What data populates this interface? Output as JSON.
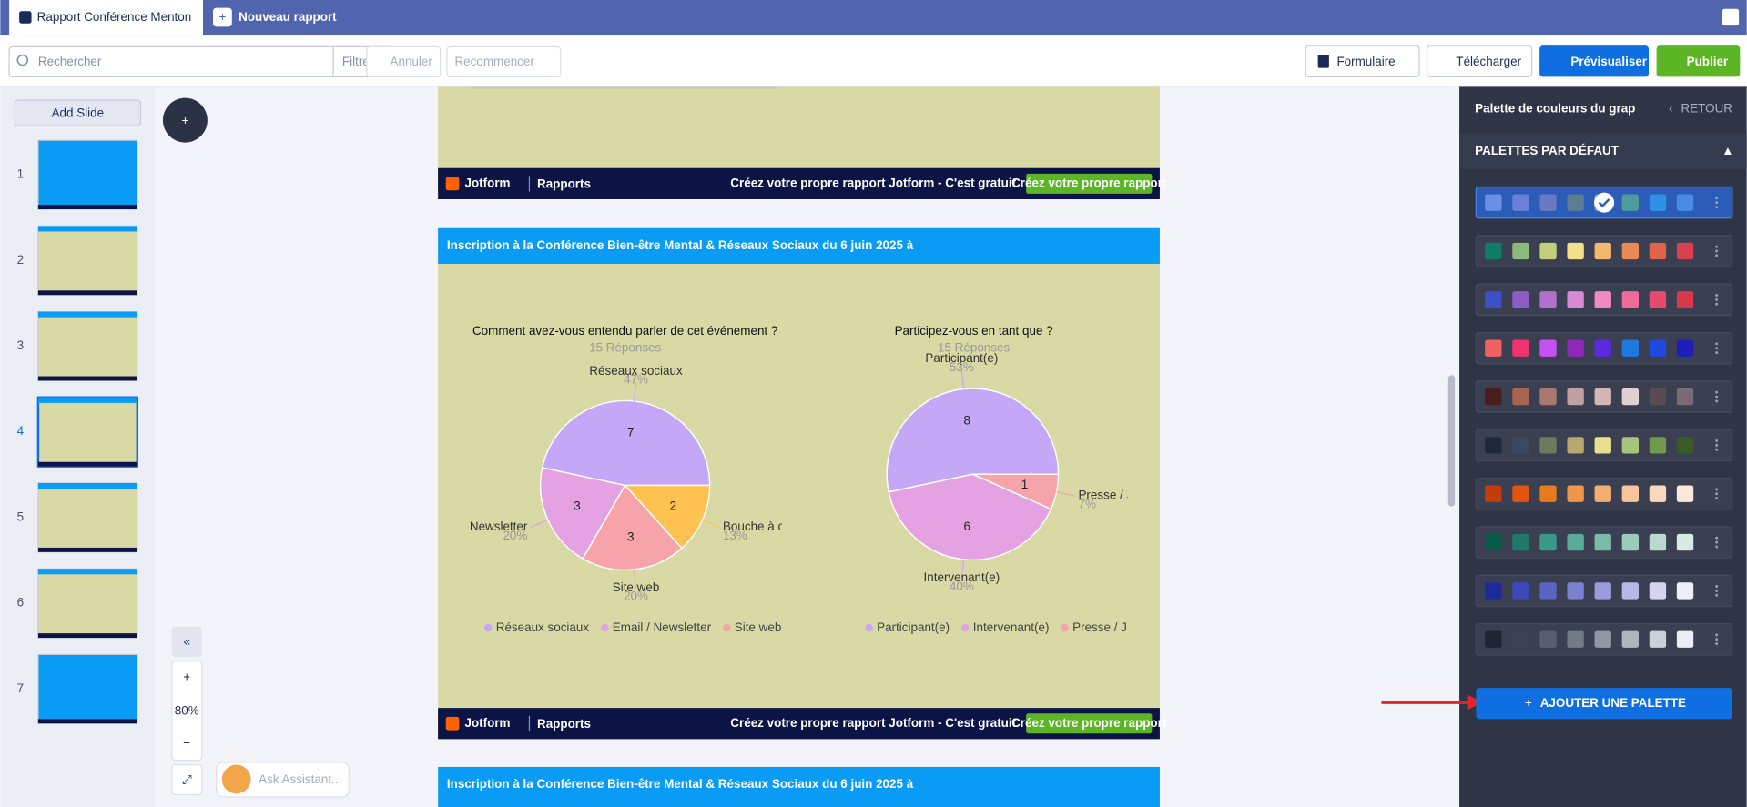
{
  "tabs": {
    "active": "Rapport Conférence Menton",
    "new": "Nouveau rapport"
  },
  "toolbar": {
    "search": "Rechercher",
    "filter": "Filtre",
    "undo": "Annuler",
    "redo": "Recommencer",
    "form": "Formulaire",
    "download": "Télécharger",
    "preview": "Prévisualiser",
    "publish": "Publier"
  },
  "sidebar": {
    "add_slide": "Add Slide",
    "slides": [
      "1",
      "2",
      "3",
      "4",
      "5",
      "6",
      "7"
    ]
  },
  "slides": {
    "title": "Inscription à la Conférence Bien-être Mental & Réseaux Sociaux du 6 juin 2025 à",
    "footer": {
      "brand": "Jotform",
      "section": "Rapports",
      "promo": "Créez votre propre rapport Jotform - C'est gratuit",
      "button": "Créez votre propre rapport"
    }
  },
  "chart_data": [
    {
      "type": "pie",
      "title": "Comment avez-vous entendu parler de cet événement ?",
      "subtitle": "15 Réponses",
      "categories": [
        "Réseaux sociaux",
        "Email / Newsletter",
        "Site web",
        "Bouche à oreille"
      ],
      "values": [
        7,
        3,
        3,
        2
      ],
      "percent_labels": [
        "47%",
        "20%",
        "20%",
        "13%"
      ],
      "colors": [
        "#c4a8f7",
        "#e4a2e2",
        "#f6a3aa",
        "#fdc24f"
      ]
    },
    {
      "type": "pie",
      "title": "Participez-vous en tant que ?",
      "subtitle": "15 Réponses",
      "categories": [
        "Participant(e)",
        "Intervenant(e)",
        "Presse / Journaliste"
      ],
      "values": [
        8,
        6,
        1
      ],
      "percent_labels": [
        "53%",
        "40%",
        "7%"
      ],
      "colors": [
        "#c4a8f7",
        "#e4a2e2",
        "#f6a3aa"
      ]
    }
  ],
  "zoom": {
    "level": "80%"
  },
  "assistant": "Ask Assistant...",
  "panel": {
    "title": "Palette de couleurs du grap",
    "back": "RETOUR",
    "section": "PALETTES PAR DÉFAUT",
    "add": "AJOUTER UNE PALETTE",
    "palettes": [
      [
        "#6b8fe6",
        "#6a7fd8",
        "#6b78c4",
        "#5c7d94",
        "#5fa4d0",
        "#4d9b9b",
        "#2f8fe6",
        "#4a8be6"
      ],
      [
        "#0e7c66",
        "#8cba7a",
        "#c3cf7a",
        "#f2e08a",
        "#f0b86b",
        "#e88a55",
        "#e0634a",
        "#d9404f"
      ],
      [
        "#3d4fc4",
        "#8c5cc4",
        "#b170c9",
        "#d98ad6",
        "#f08bbf",
        "#f06a9a",
        "#e84a6e",
        "#d9384a"
      ],
      [
        "#f06262",
        "#f0326e",
        "#c452f0",
        "#8f27b8",
        "#5a2ae0",
        "#1e7ae0",
        "#1e4ae0",
        "#1e1eb8"
      ],
      [
        "#4a1c1c",
        "#a86450",
        "#a87a6e",
        "#c0a0a0",
        "#d4b4b4",
        "#e0d0d0",
        "#5a4a52",
        "#7a6a74"
      ],
      [
        "#1e2a3a",
        "#3a4a5e",
        "#6e7a5e",
        "#b8a86e",
        "#e8e08e",
        "#a8c47a",
        "#6e9a4a",
        "#3a5a2a"
      ],
      [
        "#c43c0a",
        "#e0560a",
        "#e87a1e",
        "#f0964a",
        "#f4ae72",
        "#f8c49a",
        "#fad8bc",
        "#fce8d8"
      ],
      [
        "#0a5a4a",
        "#1e7a6a",
        "#3a9a8a",
        "#5aaa9a",
        "#7abaaa",
        "#9acaba",
        "#badace",
        "#d8eae4"
      ],
      [
        "#1e2a9a",
        "#3a4ab8",
        "#5a64c4",
        "#7a80d0",
        "#9a9adc",
        "#b8b8e6",
        "#d4d4f0",
        "#eeeefa"
      ],
      [
        "#1e2434",
        "#3a4254",
        "#565e70",
        "#727a8a",
        "#9098a6",
        "#aeb4c0",
        "#ccd0d8",
        "#eaeef4"
      ]
    ]
  }
}
